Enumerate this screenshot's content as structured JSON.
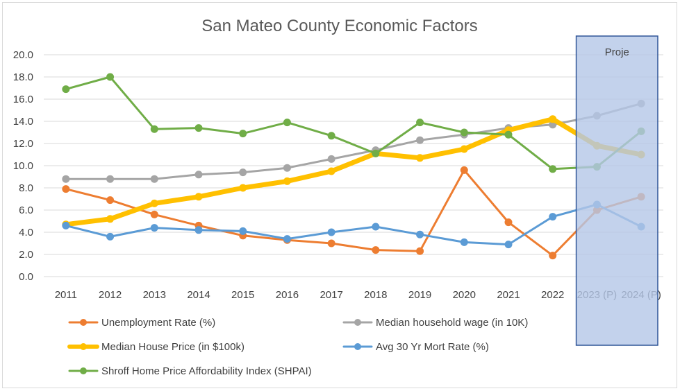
{
  "chart_data": {
    "type": "line",
    "title": "San Mateo County Economic Factors",
    "categories": [
      "2011",
      "2012",
      "2013",
      "2014",
      "2015",
      "2016",
      "2017",
      "2018",
      "2019",
      "2020",
      "2021",
      "2022",
      "2023 (P)",
      "2024 (P)"
    ],
    "ylim": [
      0,
      20
    ],
    "yticks": [
      "0.0",
      "2.0",
      "4.0",
      "6.0",
      "8.0",
      "10.0",
      "12.0",
      "14.0",
      "16.0",
      "18.0",
      "20.0"
    ],
    "xlabel": "",
    "ylabel": "",
    "grid": true,
    "legend_position": "bottom",
    "projection": {
      "label": "Proje",
      "categories": [
        "2023 (P)",
        "2024 (P)"
      ],
      "color": "#b4c7e7",
      "border_color": "#2f5597"
    },
    "series": [
      {
        "name": "Unemployment Rate (%)",
        "color": "#ed7d31",
        "width": 3,
        "values": [
          7.9,
          6.9,
          5.6,
          4.6,
          3.7,
          3.3,
          3.0,
          2.4,
          2.3,
          9.6,
          4.9,
          1.9,
          6.0,
          7.2
        ]
      },
      {
        "name": "Median household wage (in 10K)",
        "color": "#a5a5a5",
        "width": 3,
        "values": [
          8.8,
          8.8,
          8.8,
          9.2,
          9.4,
          9.8,
          10.6,
          11.4,
          12.3,
          12.8,
          13.4,
          13.7,
          14.5,
          15.6
        ]
      },
      {
        "name": "Median House Price (in $100k)",
        "color": "#ffc000",
        "width": 7,
        "values": [
          4.7,
          5.2,
          6.6,
          7.2,
          8.0,
          8.6,
          9.5,
          11.1,
          10.7,
          11.5,
          13.2,
          14.2,
          11.8,
          11.0
        ]
      },
      {
        "name": "Avg 30 Yr Mort Rate (%)",
        "color": "#5b9bd5",
        "width": 3,
        "values": [
          4.6,
          3.6,
          4.4,
          4.2,
          4.1,
          3.4,
          4.0,
          4.5,
          3.8,
          3.1,
          2.9,
          5.4,
          6.5,
          4.5
        ]
      },
      {
        "name": "Shroff Home Price Affordability Index (SHPAI)",
        "color": "#70ad47",
        "width": 3,
        "values": [
          16.9,
          18.0,
          13.3,
          13.4,
          12.9,
          13.9,
          12.7,
          11.1,
          13.9,
          13.0,
          12.8,
          9.7,
          9.9,
          13.1
        ]
      }
    ]
  }
}
